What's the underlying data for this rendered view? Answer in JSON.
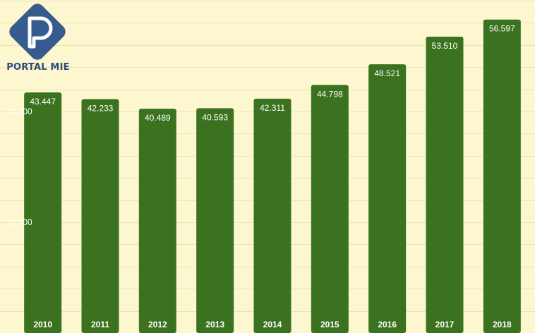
{
  "brand": {
    "name": "PORTAL MIE",
    "logo_icon": "portal-mie-logo-icon",
    "logo_color": "#355b8f"
  },
  "chart_data": {
    "type": "bar",
    "categories": [
      "2010",
      "2011",
      "2012",
      "2013",
      "2014",
      "2015",
      "2016",
      "2017",
      "2018"
    ],
    "values": [
      43447,
      42233,
      40489,
      40593,
      42311,
      44798,
      48521,
      53510,
      56597
    ],
    "value_labels": [
      "43.447",
      "42.233",
      "40.489",
      "40.593",
      "42.311",
      "44.798",
      "48.521",
      "53.510",
      "56.597"
    ],
    "yticks": [
      20000,
      40000
    ],
    "ytick_labels": [
      "20.000",
      "40.000"
    ],
    "ylim": [
      0,
      60000
    ],
    "title": "",
    "xlabel": "",
    "ylabel": "",
    "grid": true,
    "bar_color": "#3a7220",
    "background": "#fdf7cf"
  }
}
